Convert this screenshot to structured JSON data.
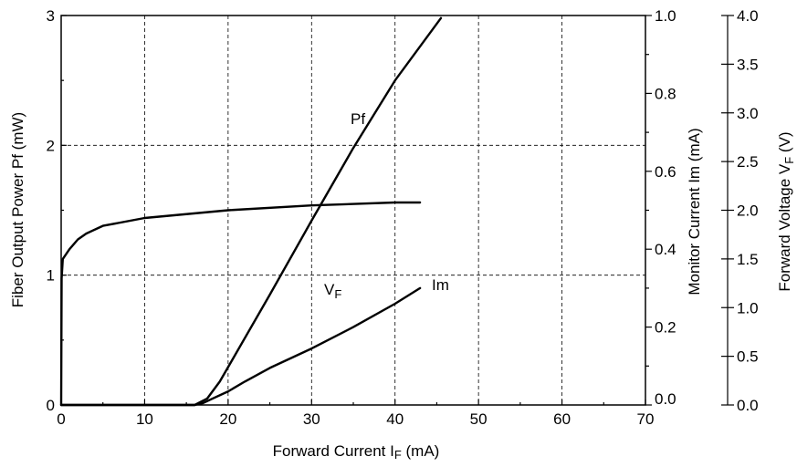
{
  "chart_data": {
    "type": "line",
    "xlabel": "Forward Current  I",
    "xlabel_sub": "F",
    "xlabel_unit": " (mA)",
    "xlim": [
      0,
      70
    ],
    "x_ticks": [
      "0",
      "10",
      "20",
      "30",
      "40",
      "50",
      "60",
      "70"
    ],
    "y_left": {
      "label": "Fiber Output  Power Pf (mW)",
      "lim": [
        0,
        3
      ],
      "ticks": [
        "0",
        "1",
        "2",
        "3"
      ]
    },
    "y_right_1": {
      "label": "Monitor Current  Im (mA)",
      "lim": [
        0,
        1.0
      ],
      "ticks": [
        "0.0",
        "0.2",
        "0.4",
        "0.6",
        "0.8",
        "1.0"
      ]
    },
    "y_right_2": {
      "label": "Forward Voltage  V",
      "label_sub": "F",
      "label_unit": " (V)",
      "lim": [
        0,
        4.0
      ],
      "ticks": [
        "0.0",
        "0.5",
        "1.0",
        "1.5",
        "2.0",
        "2.5",
        "3.0",
        "3.5",
        "4.0"
      ]
    },
    "grid": "dashed, major ticks",
    "series": [
      {
        "name": "Pf",
        "axis": "left",
        "x": [
          0,
          16,
          17.5,
          19,
          25,
          30,
          35,
          40,
          45.5
        ],
        "y": [
          0,
          0,
          0.05,
          0.18,
          0.85,
          1.42,
          1.98,
          2.5,
          2.98
        ]
      },
      {
        "name": "V",
        "name_sub": "F",
        "axis": "right_2",
        "x": [
          0,
          0.05,
          0.2,
          1,
          2,
          3,
          5,
          10,
          20,
          30,
          40,
          43
        ],
        "y": [
          0,
          1.3,
          1.5,
          1.6,
          1.7,
          1.76,
          1.84,
          1.92,
          2.0,
          2.05,
          2.08,
          2.08
        ]
      },
      {
        "name": "Im",
        "axis": "right_1",
        "x": [
          0,
          16,
          17,
          18,
          20,
          22,
          25,
          30,
          35,
          40,
          43
        ],
        "y": [
          0,
          0,
          0.005,
          0.015,
          0.035,
          0.06,
          0.095,
          0.145,
          0.2,
          0.26,
          0.3
        ]
      }
    ]
  }
}
